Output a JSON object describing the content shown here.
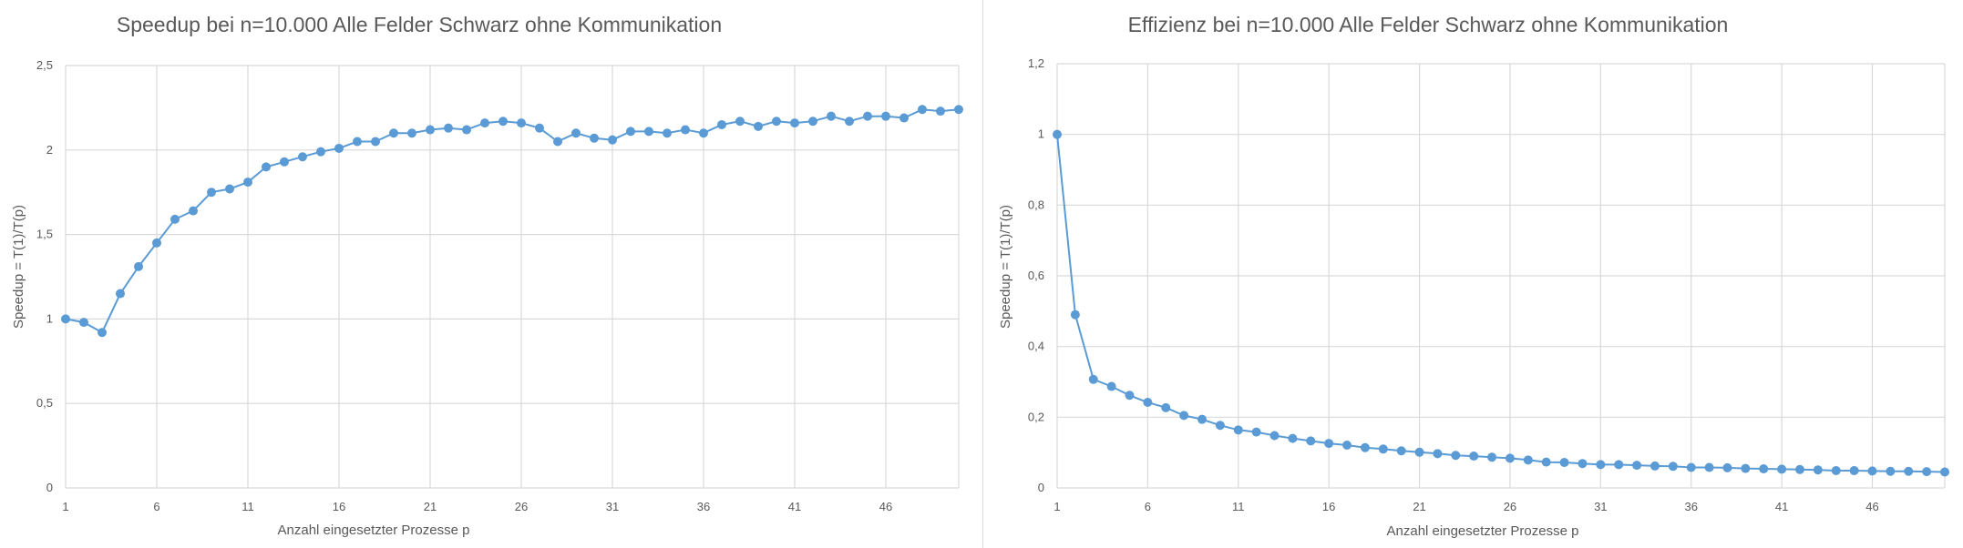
{
  "charts": [
    {
      "title": "Speedup bei n=10.000 Alle Felder Schwarz ohne Kommunikation",
      "xlabel": "Anzahl eingesetzter Prozesse p",
      "ylabel": "Speedup = T(1)/T(p)"
    },
    {
      "title": "Effizienz bei n=10.000 Alle Felder Schwarz ohne Kommunikation",
      "xlabel": "Anzahl eingesetzter Prozesse p",
      "ylabel": "Speedup = T(1)/T(p)"
    }
  ],
  "chart_data": [
    {
      "type": "line",
      "title": "Speedup bei n=10.000 Alle Felder Schwarz ohne Kommunikation",
      "xlabel": "Anzahl eingesetzter Prozesse p",
      "ylabel": "Speedup = T(1)/T(p)",
      "x": [
        1,
        2,
        3,
        4,
        5,
        6,
        7,
        8,
        9,
        10,
        11,
        12,
        13,
        14,
        15,
        16,
        17,
        18,
        19,
        20,
        21,
        22,
        23,
        24,
        25,
        26,
        27,
        28,
        29,
        30,
        31,
        32,
        33,
        34,
        35,
        36,
        37,
        38,
        39,
        40,
        41,
        42,
        43,
        44,
        45,
        46,
        47,
        48,
        49,
        50
      ],
      "values": [
        1.0,
        0.98,
        0.92,
        1.15,
        1.31,
        1.45,
        1.59,
        1.64,
        1.75,
        1.77,
        1.81,
        1.9,
        1.93,
        1.96,
        1.99,
        2.01,
        2.05,
        2.05,
        2.1,
        2.1,
        2.12,
        2.13,
        2.12,
        2.16,
        2.17,
        2.16,
        2.13,
        2.05,
        2.1,
        2.07,
        2.06,
        2.11,
        2.11,
        2.1,
        2.12,
        2.1,
        2.15,
        2.17,
        2.14,
        2.17,
        2.16,
        2.17,
        2.2,
        2.17,
        2.2,
        2.2,
        2.19,
        2.24,
        2.23,
        2.24
      ],
      "xticks": [
        "1",
        "6",
        "11",
        "16",
        "21",
        "26",
        "31",
        "36",
        "41",
        "46"
      ],
      "yticks": [
        "0",
        "0,5",
        "1",
        "1,5",
        "2",
        "2,5"
      ],
      "ylim": [
        0,
        2.5
      ],
      "grid": true,
      "color": "#5b9bd5"
    },
    {
      "type": "line",
      "title": "Effizienz bei n=10.000 Alle Felder Schwarz ohne Kommunikation",
      "xlabel": "Anzahl eingesetzter Prozesse p",
      "ylabel": "Speedup = T(1)/T(p)",
      "x": [
        1,
        2,
        3,
        4,
        5,
        6,
        7,
        8,
        9,
        10,
        11,
        12,
        13,
        14,
        15,
        16,
        17,
        18,
        19,
        20,
        21,
        22,
        23,
        24,
        25,
        26,
        27,
        28,
        29,
        30,
        31,
        32,
        33,
        34,
        35,
        36,
        37,
        38,
        39,
        40,
        41,
        42,
        43,
        44,
        45,
        46,
        47,
        48,
        49,
        50
      ],
      "values": [
        1.0,
        0.49,
        0.307,
        0.287,
        0.262,
        0.242,
        0.227,
        0.205,
        0.194,
        0.177,
        0.164,
        0.158,
        0.148,
        0.14,
        0.133,
        0.126,
        0.121,
        0.114,
        0.11,
        0.105,
        0.101,
        0.097,
        0.092,
        0.09,
        0.087,
        0.084,
        0.079,
        0.073,
        0.072,
        0.069,
        0.066,
        0.066,
        0.064,
        0.062,
        0.061,
        0.058,
        0.058,
        0.057,
        0.055,
        0.054,
        0.053,
        0.052,
        0.051,
        0.049,
        0.049,
        0.048,
        0.047,
        0.047,
        0.046,
        0.045
      ],
      "xticks": [
        "1",
        "6",
        "11",
        "16",
        "21",
        "26",
        "31",
        "36",
        "41",
        "46"
      ],
      "yticks": [
        "0",
        "0,2",
        "0,4",
        "0,6",
        "0,8",
        "1",
        "1,2"
      ],
      "ylim": [
        0,
        1.2
      ],
      "grid": true,
      "color": "#5b9bd5"
    }
  ]
}
